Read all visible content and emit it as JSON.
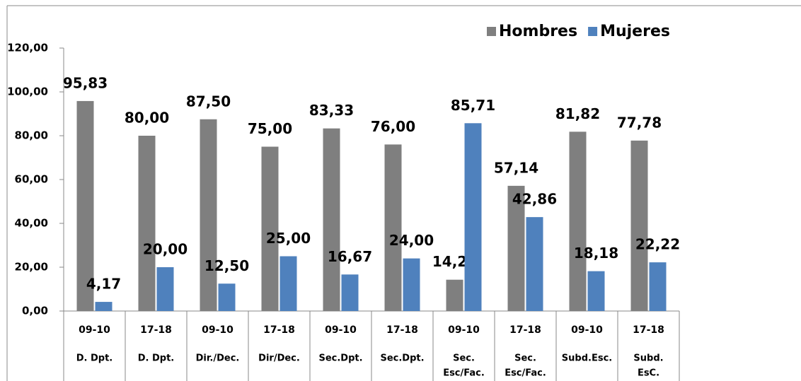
{
  "chart_data": {
    "type": "bar",
    "categories": [
      {
        "period": "09-10",
        "group": [
          "D. Dpt."
        ]
      },
      {
        "period": "17-18",
        "group": [
          "D. Dpt."
        ]
      },
      {
        "period": "09-10",
        "group": [
          "Dir./Dec."
        ]
      },
      {
        "period": "17-18",
        "group": [
          "Dir/Dec."
        ]
      },
      {
        "period": "09-10",
        "group": [
          "Sec.Dpt."
        ]
      },
      {
        "period": "17-18",
        "group": [
          "Sec.Dpt."
        ]
      },
      {
        "period": "09-10",
        "group": [
          "Sec.",
          "Esc/Fac."
        ]
      },
      {
        "period": "17-18",
        "group": [
          "Sec.",
          "Esc/Fac."
        ]
      },
      {
        "period": "09-10",
        "group": [
          "Subd.Esc."
        ]
      },
      {
        "period": "17-18",
        "group": [
          "Subd.",
          "EsC."
        ]
      }
    ],
    "series": [
      {
        "name": "Hombres",
        "color": "#7f7f7f",
        "values": [
          95.83,
          80,
          87.5,
          75,
          83.33,
          76,
          14.29,
          57.14,
          81.82,
          77.78
        ],
        "value_labels": [
          "95,83",
          "80,00",
          "87,50",
          "75,00",
          "83,33",
          "76,00",
          "14,29",
          "57,14",
          "81,82",
          "77,78"
        ]
      },
      {
        "name": "Mujeres",
        "color": "#4f81bd",
        "values": [
          4.17,
          20,
          12.5,
          25,
          16.67,
          24,
          85.71,
          42.86,
          18.18,
          22.22
        ],
        "value_labels": [
          "4,17",
          "20,00",
          "12,50",
          "25,00",
          "16,67",
          "24,00",
          "85,71",
          "42,86",
          "18,18",
          "22,22"
        ]
      }
    ],
    "ylim": [
      0,
      120
    ],
    "yticks": [
      {
        "value": 0,
        "label": "0,00"
      },
      {
        "value": 20,
        "label": "20,00"
      },
      {
        "value": 40,
        "label": "40,00"
      },
      {
        "value": 60,
        "label": "60,00"
      },
      {
        "value": 80,
        "label": "80,00"
      },
      {
        "value": 100,
        "label": "100,00"
      },
      {
        "value": 120,
        "label": "120,00"
      }
    ],
    "grid": false,
    "legend": "top-right"
  }
}
